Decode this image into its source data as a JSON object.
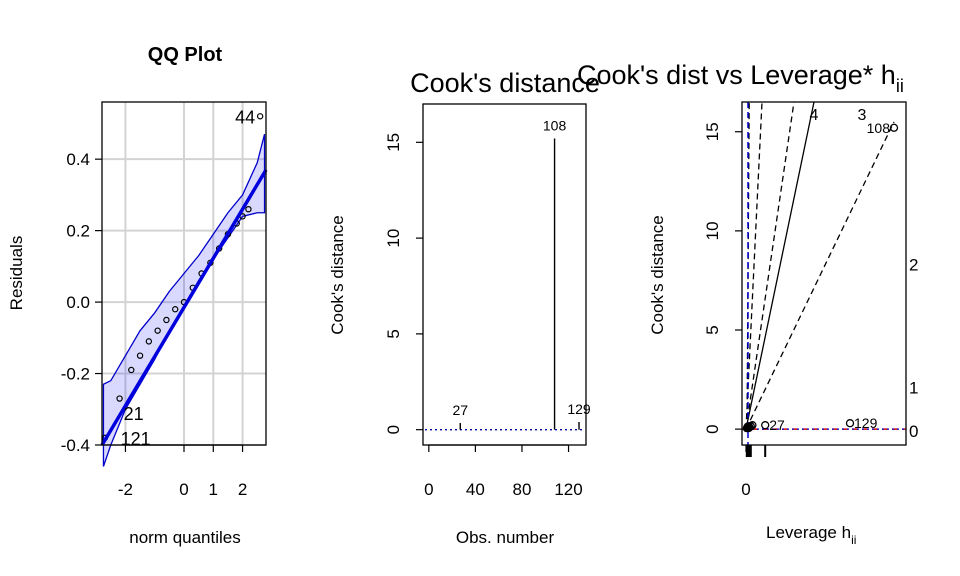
{
  "chart_data": [
    {
      "type": "scatter",
      "title": "QQ Plot",
      "xlabel": "norm quantiles",
      "ylabel": "Residuals",
      "xlim": [
        -2.8,
        2.8
      ],
      "ylim": [
        -0.4,
        0.56
      ],
      "xticks": [
        -2,
        0,
        1,
        2
      ],
      "yticks": [
        -0.4,
        -0.2,
        0.0,
        0.2,
        0.4
      ],
      "grid": true,
      "reference_line": {
        "x": [
          -2.8,
          2.8
        ],
        "y": [
          -0.4,
          0.37
        ]
      },
      "envelope": {
        "x": [
          -2.75,
          -2.5,
          -2.0,
          -1.5,
          -1.0,
          -0.5,
          0.0,
          0.5,
          1.0,
          1.5,
          2.0,
          2.5,
          2.75
        ],
        "lower": [
          -0.46,
          -0.4,
          -0.3,
          -0.23,
          -0.16,
          -0.08,
          -0.01,
          0.06,
          0.12,
          0.18,
          0.24,
          0.25,
          0.25
        ],
        "upper": [
          -0.23,
          -0.22,
          -0.15,
          -0.08,
          -0.03,
          0.03,
          0.08,
          0.13,
          0.19,
          0.25,
          0.3,
          0.39,
          0.47
        ]
      },
      "points": {
        "x": [
          -2.7,
          -2.2,
          -1.8,
          -1.5,
          -1.2,
          -0.9,
          -0.6,
          -0.3,
          0.0,
          0.3,
          0.6,
          0.9,
          1.2,
          1.5,
          1.8,
          2.0,
          2.2,
          2.6
        ],
        "y": [
          -0.38,
          -0.27,
          -0.19,
          -0.15,
          -0.11,
          -0.08,
          -0.05,
          -0.02,
          0.0,
          0.04,
          0.08,
          0.11,
          0.15,
          0.19,
          0.22,
          0.24,
          0.26,
          0.52
        ]
      },
      "labels": [
        {
          "text": "44",
          "x": 2.6,
          "y": 0.52
        },
        {
          "text": "21",
          "x": -2.2,
          "y": -0.31
        },
        {
          "text": "121",
          "x": -2.3,
          "y": -0.38
        }
      ]
    },
    {
      "type": "bar",
      "title": "Cook's distance",
      "xlabel": "Obs. number",
      "ylabel": "Cook's distance",
      "xlim": [
        -5,
        135
      ],
      "ylim": [
        -0.8,
        17
      ],
      "xticks": [
        0,
        40,
        80,
        120
      ],
      "yticks": [
        0,
        5,
        10,
        15
      ],
      "x": [
        27,
        108,
        129
      ],
      "values": [
        0.35,
        15.2,
        0.4
      ],
      "labels": [
        {
          "text": "27",
          "x": 27,
          "y": 0.35
        },
        {
          "text": "108",
          "x": 108,
          "y": 15.2
        },
        {
          "text": "129",
          "x": 129,
          "y": 0.4
        }
      ]
    },
    {
      "type": "scatter",
      "title": "Cook's dist vs Leverage* h",
      "title_subscript": "ii",
      "xlabel": "Leverage  h",
      "xlabel_subscript": "ii",
      "ylabel": "Cook's distance",
      "xlim": [
        -0.005,
        0.2
      ],
      "ylim": [
        -0.8,
        16.5
      ],
      "xticks": [
        0
      ],
      "yticks": [
        0,
        5,
        10,
        15
      ],
      "right_labels": [
        {
          "text": "2",
          "y": 8.3
        },
        {
          "text": "1",
          "y": 2.1
        },
        {
          "text": "0",
          "y": -0.1
        }
      ],
      "contours": [
        {
          "text": "4",
          "x": 0.085,
          "y": 15.8
        },
        {
          "text": "3",
          "x": 0.145,
          "y": 15.8
        }
      ],
      "points": {
        "x": [
          0.001,
          0.002,
          0.004,
          0.006,
          0.008,
          0.024,
          0.13,
          0.185
        ],
        "y": [
          0.05,
          0.1,
          0.1,
          0.15,
          0.2,
          0.2,
          0.3,
          15.2
        ]
      },
      "labels": [
        {
          "text": "27",
          "x": 0.024,
          "y": 0.2
        },
        {
          "text": "129",
          "x": 0.13,
          "y": 0.3
        },
        {
          "text": "108",
          "x": 0.185,
          "y": 15.2
        }
      ]
    }
  ]
}
